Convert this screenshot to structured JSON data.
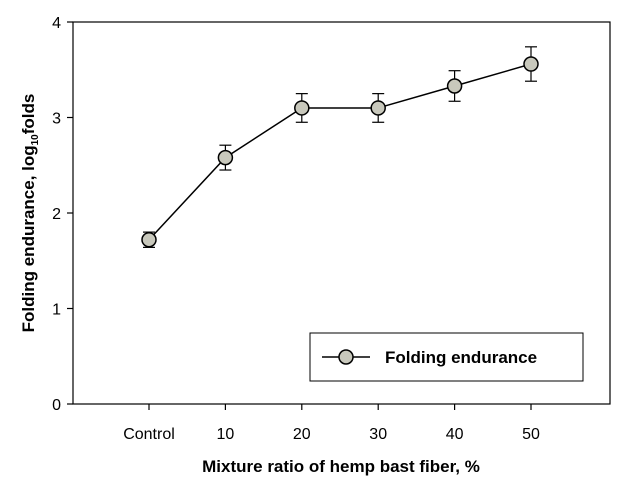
{
  "chart_data": {
    "type": "line",
    "categories": [
      "Control",
      "10",
      "20",
      "30",
      "40",
      "50"
    ],
    "series": [
      {
        "name": "Folding endurance",
        "values": [
          1.72,
          2.58,
          3.1,
          3.1,
          3.33,
          3.56
        ],
        "error": [
          0.08,
          0.13,
          0.15,
          0.15,
          0.16,
          0.18
        ]
      }
    ],
    "xlabel": "Mixture ratio of hemp bast fiber, %",
    "ylabel_main": "Folding endurance, log",
    "ylabel_sub": "10",
    "ylabel_tail": "folds",
    "ylim": [
      0,
      4
    ],
    "yticks": [
      "0",
      "1",
      "2",
      "3",
      "4"
    ],
    "grid": false,
    "legend_position": "bottom-right",
    "marker_fill": "#c8c8bc",
    "line_color": "#000000"
  }
}
